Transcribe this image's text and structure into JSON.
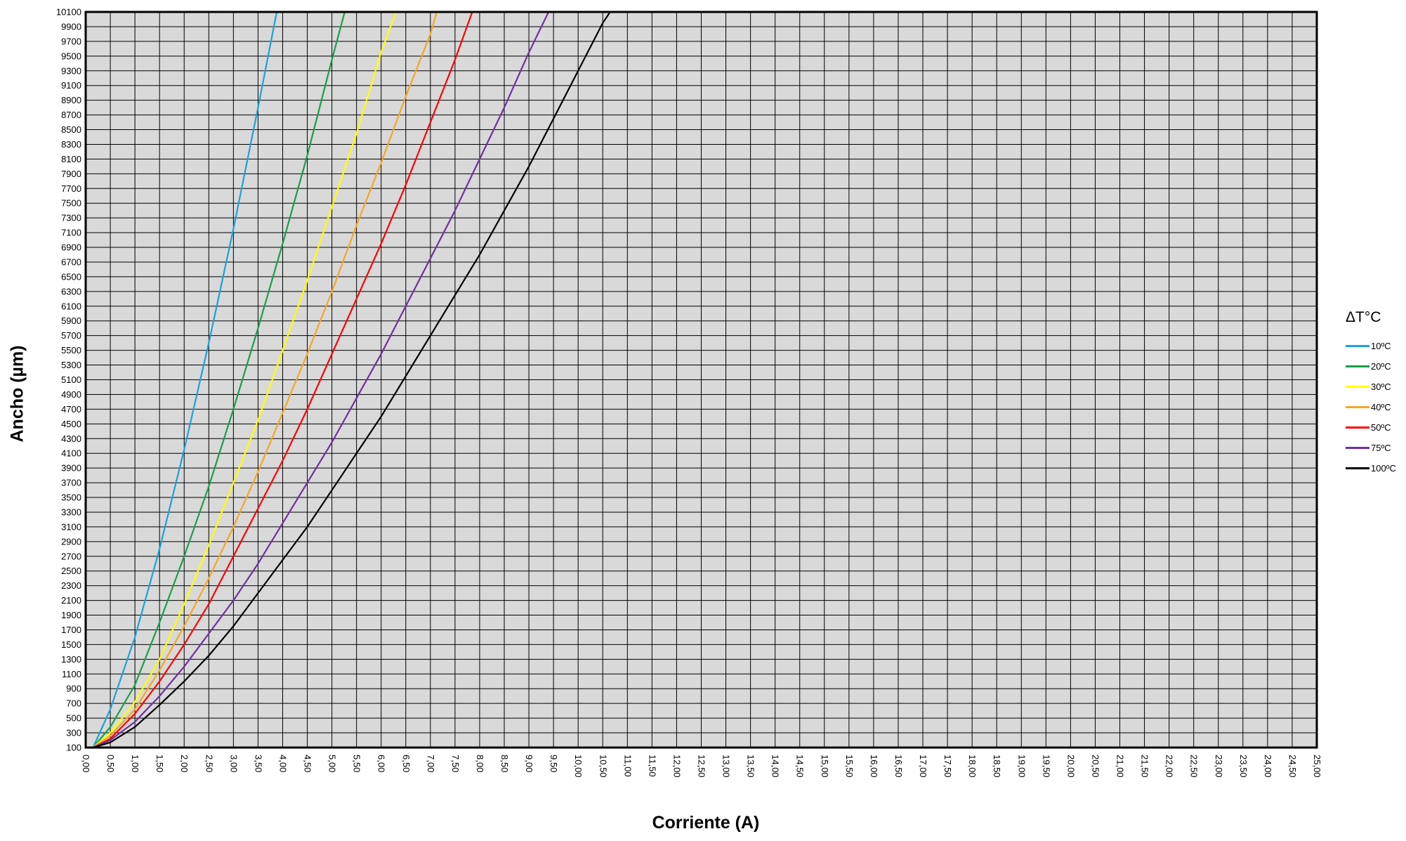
{
  "chart_data": {
    "type": "line",
    "xlabel": "Corriente (A)",
    "ylabel": "Ancho (µm)",
    "xlim": [
      0,
      25
    ],
    "ylim": [
      100,
      10100
    ],
    "x_ticks": [
      "0,00",
      "0,50",
      "1,00",
      "1,50",
      "2,00",
      "2,50",
      "3,00",
      "3,50",
      "4,00",
      "4,50",
      "5,00",
      "5,50",
      "6,00",
      "6,50",
      "7,00",
      "7,50",
      "8,00",
      "8,50",
      "9,00",
      "9,50",
      "10,00",
      "10,50",
      "11,00",
      "11,50",
      "12,00",
      "12,50",
      "13,00",
      "13,50",
      "14,00",
      "14,50",
      "15,00",
      "15,50",
      "16,00",
      "16,50",
      "17,00",
      "17,50",
      "18,00",
      "18,50",
      "19,00",
      "19,50",
      "20,00",
      "20,50",
      "21,00",
      "21,50",
      "22,00",
      "22,50",
      "23,00",
      "23,50",
      "24,00",
      "24,50",
      "25,00"
    ],
    "y_ticks": [
      "100",
      "300",
      "500",
      "700",
      "900",
      "1100",
      "1300",
      "1500",
      "1700",
      "1900",
      "2100",
      "2300",
      "2500",
      "2700",
      "2900",
      "3100",
      "3300",
      "3500",
      "3700",
      "3900",
      "4100",
      "4300",
      "4500",
      "4700",
      "4900",
      "5100",
      "5300",
      "5500",
      "5700",
      "5900",
      "6100",
      "6300",
      "6500",
      "6700",
      "6900",
      "7100",
      "7300",
      "7500",
      "7700",
      "7900",
      "8100",
      "8300",
      "8500",
      "8700",
      "8900",
      "9100",
      "9300",
      "9500",
      "9700",
      "9900",
      "10100"
    ],
    "grid": true,
    "legend_title": "ΔT°C",
    "legend_position": "right",
    "series": [
      {
        "name": "10ºC",
        "color": "#1aa3d9",
        "x": [
          0.15,
          0.5,
          1.0,
          1.5,
          2.0,
          2.5,
          3.0,
          3.5,
          3.88
        ],
        "y": [
          100,
          620,
          1600,
          2800,
          4150,
          5600,
          7150,
          8800,
          10100
        ]
      },
      {
        "name": "20ºC",
        "color": "#1a9e4a",
        "x": [
          0.15,
          0.5,
          1.0,
          1.5,
          2.0,
          2.5,
          3.0,
          3.5,
          4.0,
          4.5,
          5.0,
          5.26
        ],
        "y": [
          100,
          380,
          950,
          1800,
          2700,
          3650,
          4700,
          5800,
          6950,
          8150,
          9450,
          10100
        ]
      },
      {
        "name": "30ºC",
        "color": "#ffff00",
        "x": [
          0.15,
          0.5,
          1.0,
          1.5,
          2.0,
          2.5,
          3.0,
          3.5,
          4.0,
          4.5,
          5.0,
          5.5,
          6.0,
          6.3
        ],
        "y": [
          100,
          300,
          720,
          1300,
          2050,
          2850,
          3700,
          4550,
          5500,
          6450,
          7450,
          8450,
          9550,
          10100
        ]
      },
      {
        "name": "40ºC",
        "color": "#f5a623",
        "x": [
          0.15,
          0.5,
          1.0,
          1.5,
          2.0,
          2.5,
          3.0,
          3.5,
          4.0,
          4.5,
          5.0,
          5.5,
          6.0,
          6.5,
          7.0,
          7.13
        ],
        "y": [
          100,
          260,
          620,
          1150,
          1750,
          2400,
          3100,
          3850,
          4650,
          5450,
          6300,
          7200,
          8050,
          8950,
          9800,
          10100
        ]
      },
      {
        "name": "50ºC",
        "color": "#ff0000",
        "x": [
          0.15,
          0.5,
          1.0,
          1.5,
          2.0,
          2.5,
          3.0,
          3.5,
          4.0,
          4.5,
          5.0,
          5.5,
          6.0,
          6.5,
          7.0,
          7.5,
          7.85
        ],
        "y": [
          100,
          220,
          560,
          1000,
          1500,
          2050,
          2700,
          3350,
          4000,
          4700,
          5450,
          6200,
          6950,
          7750,
          8600,
          9450,
          10100
        ]
      },
      {
        "name": "75ºC",
        "color": "#7030a0",
        "x": [
          0.15,
          0.5,
          1.0,
          1.5,
          2.0,
          2.5,
          3.0,
          3.5,
          4.0,
          4.5,
          5.0,
          5.5,
          6.0,
          6.5,
          7.0,
          7.5,
          8.0,
          8.5,
          9.0,
          9.4
        ],
        "y": [
          100,
          200,
          450,
          800,
          1200,
          1650,
          2100,
          2600,
          3150,
          3700,
          4250,
          4850,
          5450,
          6100,
          6750,
          7400,
          8100,
          8800,
          9550,
          10100
        ]
      },
      {
        "name": "100ºC",
        "color": "#000000",
        "x": [
          0.15,
          0.5,
          1.0,
          1.5,
          2.0,
          2.5,
          3.0,
          3.5,
          4.0,
          4.5,
          5.0,
          5.5,
          6.0,
          6.5,
          7.0,
          7.5,
          8.0,
          8.5,
          9.0,
          9.5,
          10.0,
          10.5,
          10.65
        ],
        "y": [
          100,
          170,
          380,
          680,
          1000,
          1350,
          1750,
          2200,
          2650,
          3100,
          3600,
          4100,
          4600,
          5150,
          5700,
          6250,
          6800,
          7400,
          8000,
          8650,
          9300,
          9950,
          10100
        ]
      }
    ]
  }
}
